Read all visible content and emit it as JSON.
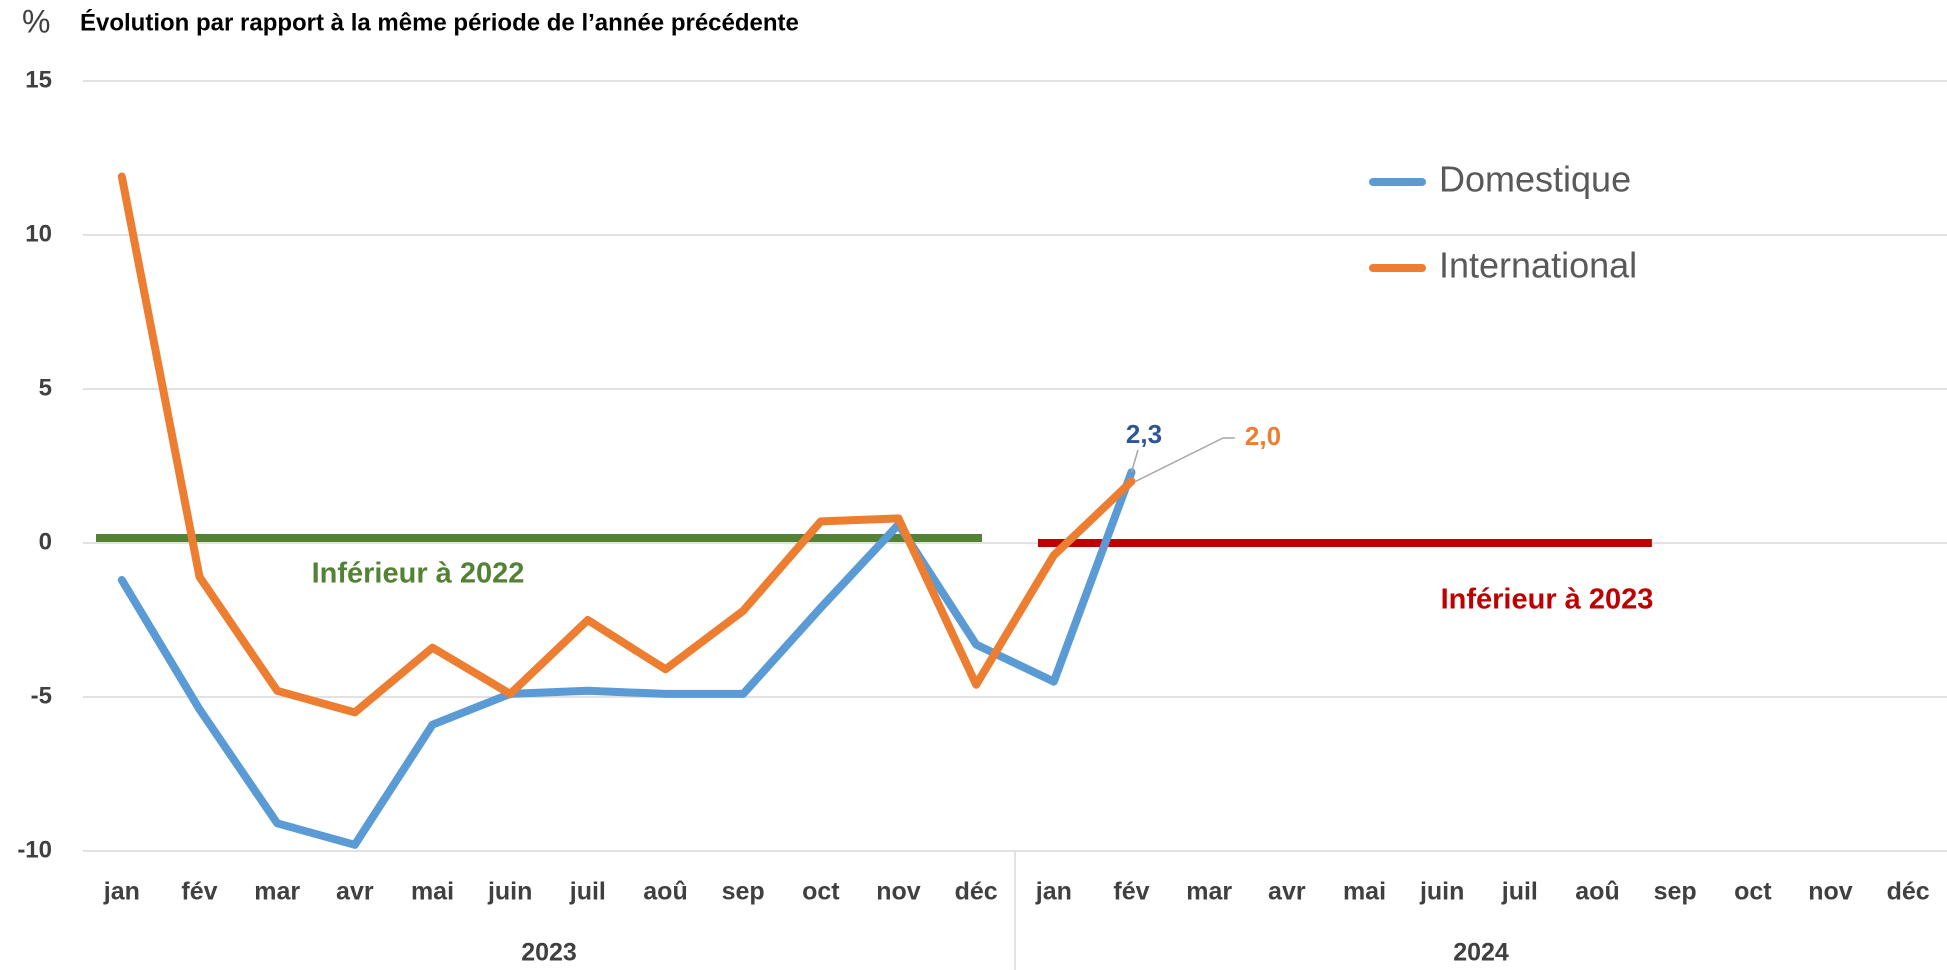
{
  "chart_data": {
    "type": "line",
    "title": "Évolution par rapport à la même période de l’année précédente",
    "y_label": "%",
    "categories": [
      "jan",
      "fév",
      "mar",
      "avr",
      "mai",
      "juin",
      "juil",
      "aoû",
      "sep",
      "oct",
      "nov",
      "déc",
      "jan",
      "fév",
      "mar",
      "avr",
      "mai",
      "juin",
      "juil",
      "aoû",
      "sep",
      "oct",
      "nov",
      "déc"
    ],
    "x_groups": [
      "2023",
      "2024"
    ],
    "series": [
      {
        "name": "Domestique",
        "color": "#5b9bd5",
        "values": [
          -1.2,
          -5.4,
          -9.1,
          -9.8,
          -5.9,
          -4.9,
          -4.8,
          -4.9,
          -4.9,
          -2.1,
          0.6,
          -3.3,
          -4.5,
          2.3,
          null,
          null,
          null,
          null,
          null,
          null,
          null,
          null,
          null,
          null
        ],
        "value_labels": [
          null,
          null,
          null,
          null,
          null,
          null,
          null,
          null,
          null,
          null,
          null,
          null,
          null,
          "2,3",
          null,
          null,
          null,
          null,
          null,
          null,
          null,
          null,
          null,
          null
        ],
        "label_color": "#2f5597"
      },
      {
        "name": "International",
        "color": "#ed7d31",
        "values": [
          11.9,
          -1.1,
          -4.8,
          -5.5,
          -3.4,
          -4.9,
          -2.5,
          -4.1,
          -2.2,
          0.7,
          0.8,
          -4.6,
          -0.4,
          2.0,
          null,
          null,
          null,
          null,
          null,
          null,
          null,
          null,
          null,
          null
        ],
        "value_labels": [
          null,
          null,
          null,
          null,
          null,
          null,
          null,
          null,
          null,
          null,
          null,
          null,
          null,
          "2,0",
          null,
          null,
          null,
          null,
          null,
          null,
          null,
          null,
          null,
          null
        ],
        "label_color": "#ed7d31"
      }
    ],
    "reference_lines": [
      {
        "label": "Inférieur à 2022",
        "value": 0,
        "color": "#548235"
      },
      {
        "label": "Inférieur à 2023",
        "value": 0,
        "color": "#c00000"
      }
    ],
    "ylim": [
      -10,
      15
    ],
    "yticks": [
      15,
      10,
      5,
      0,
      -5,
      -10
    ],
    "grid": true,
    "legend": "upper right"
  }
}
